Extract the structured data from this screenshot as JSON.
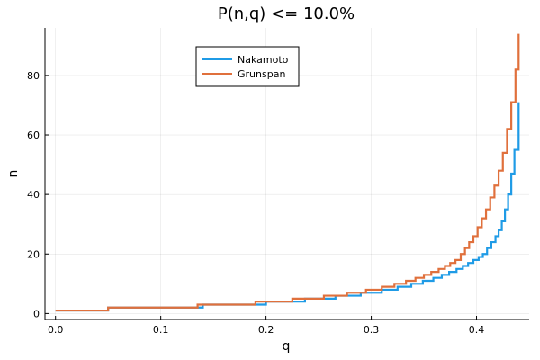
{
  "chart_data": {
    "type": "line",
    "title": "P(n,q) <= 10.0%",
    "xlabel": "q",
    "ylabel": "n",
    "xlim": [
      -0.01,
      0.45
    ],
    "ylim": [
      -2,
      96
    ],
    "xticks": [
      0.0,
      0.1,
      0.2,
      0.3,
      0.4
    ],
    "xtick_labels": [
      "0.0",
      "0.1",
      "0.2",
      "0.3",
      "0.4"
    ],
    "yticks": [
      0,
      20,
      40,
      60,
      80
    ],
    "ytick_labels": [
      "0",
      "20",
      "40",
      "60",
      "80"
    ],
    "grid": true,
    "legend": "top-center",
    "step": true,
    "series": [
      {
        "name": "Nakamoto",
        "color": "#1f9be6",
        "x": [
          0.0,
          0.05,
          0.14,
          0.2,
          0.237,
          0.266,
          0.29,
          0.31,
          0.325,
          0.338,
          0.349,
          0.359,
          0.367,
          0.374,
          0.381,
          0.387,
          0.392,
          0.397,
          0.402,
          0.406,
          0.41,
          0.414,
          0.418,
          0.421,
          0.424,
          0.427,
          0.43,
          0.433,
          0.436,
          0.44
        ],
        "y": [
          1,
          2,
          3,
          4,
          5,
          6,
          7,
          8,
          9,
          10,
          11,
          12,
          13,
          14,
          15,
          16,
          17,
          18,
          19,
          20,
          22,
          24,
          26,
          28,
          31,
          35,
          40,
          47,
          55,
          71
        ]
      },
      {
        "name": "Grunspan",
        "color": "#e0703c",
        "x": [
          0.0,
          0.05,
          0.135,
          0.19,
          0.225,
          0.255,
          0.277,
          0.295,
          0.31,
          0.322,
          0.333,
          0.342,
          0.35,
          0.357,
          0.364,
          0.37,
          0.375,
          0.38,
          0.385,
          0.389,
          0.393,
          0.397,
          0.401,
          0.405,
          0.409,
          0.413,
          0.417,
          0.421,
          0.425,
          0.429,
          0.433,
          0.437,
          0.44
        ],
        "y": [
          1,
          2,
          3,
          4,
          5,
          6,
          7,
          8,
          9,
          10,
          11,
          12,
          13,
          14,
          15,
          16,
          17,
          18,
          20,
          22,
          24,
          26,
          29,
          32,
          35,
          39,
          43,
          48,
          54,
          62,
          71,
          82,
          94
        ]
      }
    ]
  }
}
